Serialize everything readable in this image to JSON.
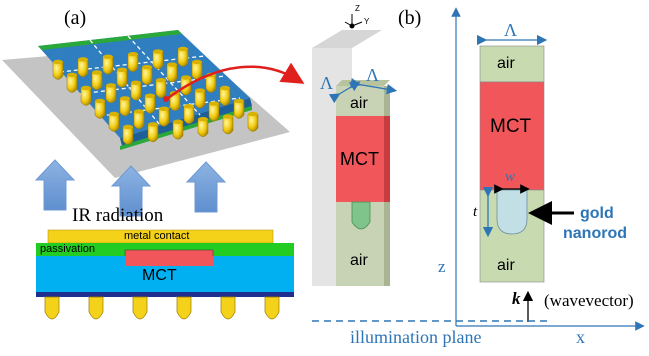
{
  "panel_a": {
    "label": "(a)",
    "radiation_label": "IR radiation",
    "cross_section": {
      "metal_contact": "metal contact",
      "passivation": "passivation",
      "mct": "MCT"
    }
  },
  "panel_3d": {
    "lambda_left": "Λ",
    "lambda_right": "Λ",
    "air_top": "air",
    "mct": "MCT",
    "air_bottom": "air",
    "axis_z": "Z",
    "axis_y": "Y"
  },
  "panel_b": {
    "label": "(b)",
    "lambda": "Λ",
    "air_top": "air",
    "mct": "MCT",
    "w": "w",
    "t": "t",
    "gold_nanorod_line1": "gold",
    "gold_nanorod_line2": "nanorod",
    "air_bottom": "air",
    "k": "k",
    "wavevector": "(wavevector)",
    "z_axis": "z",
    "x_axis": "x",
    "illumination": "illumination plane"
  },
  "colors": {
    "blue_accent": "#2e75b6",
    "mct_red": "#f0565a",
    "air_green": "#c8dab0",
    "gold": "#f5d21a",
    "passivation": "#22cc22"
  }
}
